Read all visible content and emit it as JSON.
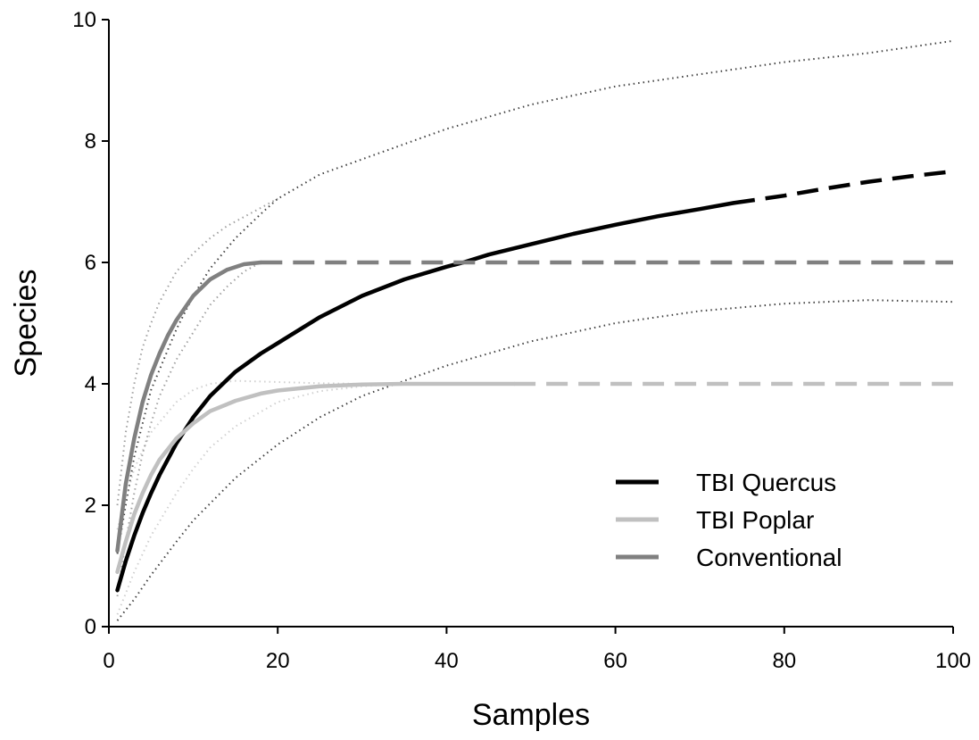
{
  "chart_data": {
    "type": "line",
    "title": "",
    "xlabel": "Samples",
    "ylabel": "Species",
    "xlim": [
      0,
      100
    ],
    "ylim": [
      0,
      10
    ],
    "xticks": [
      0,
      20,
      40,
      60,
      80,
      100
    ],
    "yticks": [
      0,
      2,
      4,
      6,
      8,
      10
    ],
    "grid": false,
    "legend_position": "bottom-right",
    "series": [
      {
        "name": "TBI Quercus",
        "color": "#000000",
        "observed_until": 74,
        "points": [
          [
            1,
            0.6
          ],
          [
            2,
            1.08
          ],
          [
            3,
            1.5
          ],
          [
            4,
            1.87
          ],
          [
            5,
            2.2
          ],
          [
            6,
            2.5
          ],
          [
            8,
            3.02
          ],
          [
            10,
            3.45
          ],
          [
            12,
            3.8
          ],
          [
            15,
            4.2
          ],
          [
            18,
            4.5
          ],
          [
            20,
            4.67
          ],
          [
            25,
            5.1
          ],
          [
            30,
            5.45
          ],
          [
            35,
            5.72
          ],
          [
            40,
            5.93
          ],
          [
            42,
            6.0
          ],
          [
            45,
            6.13
          ],
          [
            50,
            6.3
          ],
          [
            55,
            6.47
          ],
          [
            60,
            6.62
          ],
          [
            65,
            6.76
          ],
          [
            70,
            6.88
          ],
          [
            74,
            6.98
          ],
          [
            80,
            7.1
          ],
          [
            85,
            7.22
          ],
          [
            90,
            7.33
          ],
          [
            95,
            7.42
          ],
          [
            100,
            7.5
          ]
        ],
        "confidence_bounds": {
          "lower": [
            [
              1,
              0.1
            ],
            [
              3,
              0.45
            ],
            [
              5,
              0.85
            ],
            [
              8,
              1.4
            ],
            [
              10,
              1.75
            ],
            [
              15,
              2.45
            ],
            [
              20,
              3.0
            ],
            [
              25,
              3.45
            ],
            [
              30,
              3.8
            ],
            [
              35,
              4.05
            ],
            [
              40,
              4.3
            ],
            [
              50,
              4.7
            ],
            [
              60,
              5.0
            ],
            [
              70,
              5.2
            ],
            [
              80,
              5.32
            ],
            [
              90,
              5.38
            ],
            [
              100,
              5.35
            ]
          ],
          "upper": [
            [
              1,
              1.2
            ],
            [
              2,
              2.0
            ],
            [
              3,
              2.8
            ],
            [
              5,
              3.9
            ],
            [
              8,
              4.9
            ],
            [
              10,
              5.45
            ],
            [
              12,
              5.9
            ],
            [
              15,
              6.4
            ],
            [
              18,
              6.8
            ],
            [
              20,
              7.05
            ],
            [
              25,
              7.45
            ],
            [
              30,
              7.7
            ],
            [
              40,
              8.2
            ],
            [
              50,
              8.6
            ],
            [
              60,
              8.9
            ],
            [
              70,
              9.1
            ],
            [
              80,
              9.3
            ],
            [
              90,
              9.45
            ],
            [
              100,
              9.65
            ]
          ]
        }
      },
      {
        "name": "TBI Poplar",
        "color": "#c0c0c0",
        "observed_until": 48,
        "points": [
          [
            1,
            0.9
          ],
          [
            2,
            1.4
          ],
          [
            3,
            1.85
          ],
          [
            4,
            2.2
          ],
          [
            5,
            2.5
          ],
          [
            6,
            2.75
          ],
          [
            8,
            3.1
          ],
          [
            10,
            3.35
          ],
          [
            12,
            3.55
          ],
          [
            15,
            3.72
          ],
          [
            18,
            3.84
          ],
          [
            20,
            3.89
          ],
          [
            25,
            3.96
          ],
          [
            30,
            3.99
          ],
          [
            35,
            4.0
          ],
          [
            48,
            4.0
          ],
          [
            100,
            4.0
          ]
        ],
        "confidence_bounds": {
          "lower": [
            [
              1,
              0.2
            ],
            [
              3,
              0.9
            ],
            [
              5,
              1.5
            ],
            [
              8,
              2.2
            ],
            [
              10,
              2.6
            ],
            [
              12,
              2.95
            ],
            [
              15,
              3.3
            ],
            [
              20,
              3.7
            ],
            [
              25,
              3.88
            ],
            [
              30,
              3.96
            ],
            [
              35,
              4.0
            ],
            [
              48,
              4.0
            ]
          ],
          "upper": [
            [
              1,
              1.6
            ],
            [
              2,
              2.1
            ],
            [
              3,
              2.6
            ],
            [
              5,
              3.2
            ],
            [
              8,
              3.7
            ],
            [
              10,
              3.9
            ],
            [
              12,
              4.0
            ],
            [
              15,
              4.05
            ],
            [
              20,
              4.03
            ],
            [
              25,
              4.01
            ],
            [
              30,
              4.0
            ],
            [
              48,
              4.0
            ]
          ]
        }
      },
      {
        "name": "Conventional",
        "color": "#808080",
        "observed_until": 18,
        "points": [
          [
            1,
            1.25
          ],
          [
            2,
            2.35
          ],
          [
            3,
            3.1
          ],
          [
            4,
            3.7
          ],
          [
            5,
            4.15
          ],
          [
            6,
            4.5
          ],
          [
            7,
            4.8
          ],
          [
            8,
            5.05
          ],
          [
            10,
            5.45
          ],
          [
            12,
            5.72
          ],
          [
            14,
            5.88
          ],
          [
            16,
            5.97
          ],
          [
            18,
            6.0
          ],
          [
            100,
            6.0
          ]
        ],
        "confidence_bounds": {
          "lower": [
            [
              1,
              0.5
            ],
            [
              2,
              1.4
            ],
            [
              3,
              2.2
            ],
            [
              4,
              2.85
            ],
            [
              5,
              3.35
            ],
            [
              6,
              3.8
            ],
            [
              8,
              4.4
            ],
            [
              10,
              4.85
            ],
            [
              12,
              5.3
            ],
            [
              14,
              5.6
            ],
            [
              16,
              5.85
            ],
            [
              18,
              6.0
            ]
          ],
          "upper": [
            [
              1,
              2.0
            ],
            [
              2,
              3.2
            ],
            [
              3,
              4.0
            ],
            [
              4,
              4.6
            ],
            [
              5,
              5.0
            ],
            [
              6,
              5.35
            ],
            [
              8,
              5.85
            ],
            [
              10,
              6.15
            ],
            [
              12,
              6.4
            ],
            [
              14,
              6.6
            ],
            [
              16,
              6.75
            ],
            [
              18,
              6.9
            ],
            [
              20,
              7.05
            ]
          ]
        }
      }
    ]
  }
}
